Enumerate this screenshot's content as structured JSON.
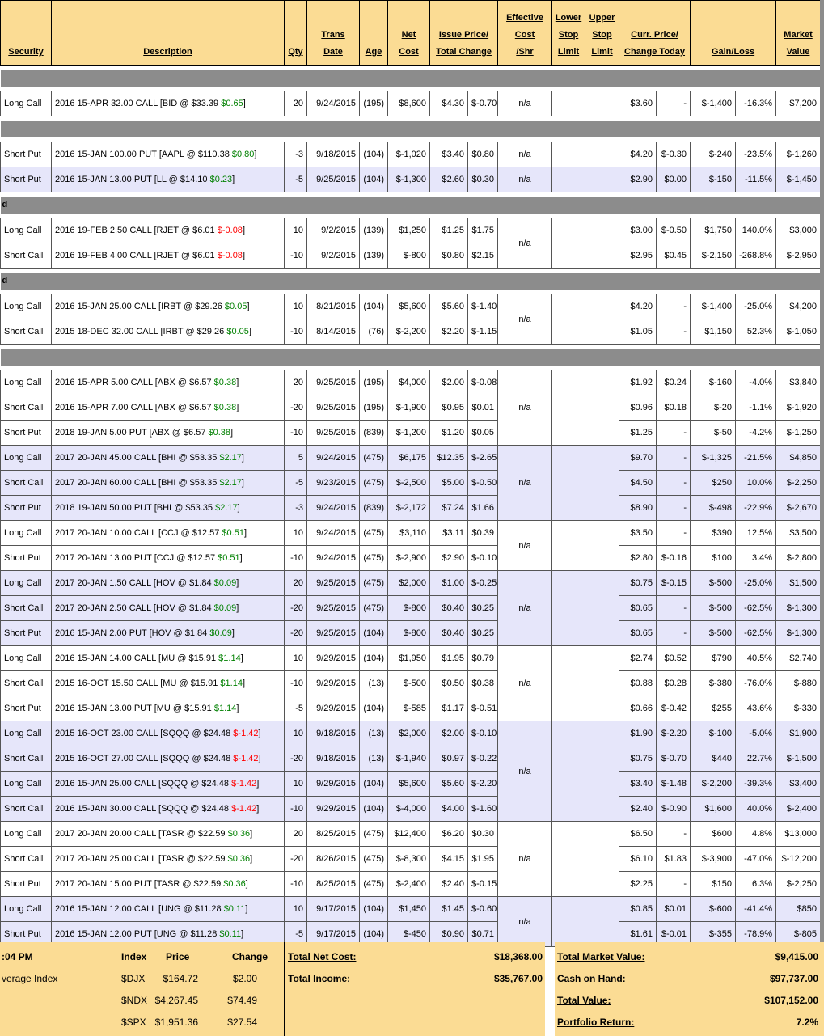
{
  "colors": {
    "positive_green": "#008000",
    "negative_red": "#FF0000",
    "header_tan": "#FBDC94",
    "separator_gray": "#8C8C8C",
    "alt_row_lavender": "#E6E6FA"
  },
  "header": {
    "security": "Security",
    "description": "Description",
    "qty": "Qty",
    "trans_date": "Trans\nDate",
    "age": "Age",
    "net_cost": "Net\nCost",
    "issue_total": "Issue Price/\nTotal Change",
    "effective": "Effective\nCost\n/Shr",
    "lower_stop": "Lower\nStop\nLimit",
    "upper_stop": "Upper\nStop\nLimit",
    "curr_change": "Curr. Price/\nChange Today",
    "gain_loss": "Gain/Loss",
    "market_value": "Market\nValue"
  },
  "sections": [
    {
      "type": "band",
      "label": ""
    },
    {
      "type": "group",
      "bg": "white",
      "eff": "n/a",
      "rows": [
        {
          "sec": "Long Call",
          "d": "2016 15-APR 32.00 CALL [BID @ $33.39",
          "c": "$0.65",
          "cc": "g",
          "qty": "20",
          "dt": "9/24/2015",
          "age": "(195)",
          "net": "$8,600",
          "ip": "$4.30",
          "tc": "$-0.70",
          "tcc": "r",
          "cp": "$3.60",
          "ct": "-",
          "ctc": "",
          "gl": "$-1,400",
          "glc": "r",
          "gp": "-16.3%",
          "mv": "$7,200"
        }
      ]
    },
    {
      "type": "band",
      "label": ""
    },
    {
      "type": "group",
      "bg": "white",
      "eff": "n/a",
      "rows": [
        {
          "sec": "Short Put",
          "d": "2016 15-JAN 100.00 PUT [AAPL @ $110.38",
          "c": "$0.80",
          "cc": "g",
          "qty": "-3",
          "dt": "9/18/2015",
          "age": "(104)",
          "net": "$-1,020",
          "ip": "$3.40",
          "tc": "$0.80",
          "tcc": "g",
          "cp": "$4.20",
          "ct": "$-0.30",
          "ctc": "r",
          "gl": "$-240",
          "glc": "r",
          "gp": "-23.5%",
          "mv": "$-1,260"
        }
      ]
    },
    {
      "type": "group",
      "bg": "blue",
      "eff": "n/a",
      "rows": [
        {
          "sec": "Short Put",
          "d": "2016 15-JAN 13.00 PUT [LL @ $14.10",
          "c": "$0.23",
          "cc": "g",
          "qty": "-5",
          "dt": "9/25/2015",
          "age": "(104)",
          "net": "$-1,300",
          "ip": "$2.60",
          "tc": "$0.30",
          "tcc": "g",
          "cp": "$2.90",
          "ct": "$0.00",
          "ctc": "g",
          "gl": "$-150",
          "glc": "r",
          "gp": "-11.5%",
          "mv": "$-1,450"
        }
      ]
    },
    {
      "type": "band",
      "label": "d"
    },
    {
      "type": "group",
      "bg": "white",
      "eff": "n/a",
      "rows": [
        {
          "sec": "Long Call",
          "d": "2016 19-FEB 2.50 CALL [RJET @ $6.01",
          "c": "$-0.08",
          "cc": "r",
          "qty": "10",
          "dt": "9/2/2015",
          "age": "(139)",
          "net": "$1,250",
          "ip": "$1.25",
          "tc": "$1.75",
          "tcc": "g",
          "cp": "$3.00",
          "ct": "$-0.50",
          "ctc": "r",
          "gl": "$1,750",
          "glc": "g",
          "gp": "140.0%",
          "mv": "$3,000"
        },
        {
          "sec": "Short Call",
          "d": "2016 19-FEB 4.00 CALL [RJET @ $6.01",
          "c": "$-0.08",
          "cc": "r",
          "qty": "-10",
          "dt": "9/2/2015",
          "age": "(139)",
          "net": "$-800",
          "ip": "$0.80",
          "tc": "$2.15",
          "tcc": "g",
          "cp": "$2.95",
          "ct": "$0.45",
          "ctc": "g",
          "gl": "$-2,150",
          "glc": "r",
          "gp": "-268.8%",
          "mv": "$-2,950"
        }
      ]
    },
    {
      "type": "band",
      "label": "d"
    },
    {
      "type": "group",
      "bg": "white",
      "eff": "n/a",
      "rows": [
        {
          "sec": "Long Call",
          "d": "2016 15-JAN 25.00 CALL [IRBT @ $29.26",
          "c": "$0.05",
          "cc": "g",
          "qty": "10",
          "dt": "8/21/2015",
          "age": "(104)",
          "net": "$5,600",
          "ip": "$5.60",
          "tc": "$-1.40",
          "tcc": "r",
          "cp": "$4.20",
          "ct": "-",
          "ctc": "",
          "gl": "$-1,400",
          "glc": "r",
          "gp": "-25.0%",
          "mv": "$4,200"
        },
        {
          "sec": "Short Call",
          "d": "2015 18-DEC 32.00 CALL [IRBT @ $29.26",
          "c": "$0.05",
          "cc": "g",
          "qty": "-10",
          "dt": "8/14/2015",
          "age": "(76)",
          "net": "$-2,200",
          "ip": "$2.20",
          "tc": "$-1.15",
          "tcc": "r",
          "cp": "$1.05",
          "ct": "-",
          "ctc": "",
          "gl": "$1,150",
          "glc": "g",
          "gp": "52.3%",
          "mv": "$-1,050"
        }
      ]
    },
    {
      "type": "band",
      "label": ""
    },
    {
      "type": "group",
      "bg": "white",
      "eff": "n/a",
      "rows": [
        {
          "sec": "Long Call",
          "d": "2016 15-APR 5.00 CALL [ABX @ $6.57",
          "c": "$0.38",
          "cc": "g",
          "qty": "20",
          "dt": "9/25/2015",
          "age": "(195)",
          "net": "$4,000",
          "ip": "$2.00",
          "tc": "$-0.08",
          "tcc": "r",
          "cp": "$1.92",
          "ct": "$0.24",
          "ctc": "g",
          "gl": "$-160",
          "glc": "r",
          "gp": "-4.0%",
          "mv": "$3,840"
        },
        {
          "sec": "Short Call",
          "d": "2016 15-APR 7.00 CALL [ABX @ $6.57",
          "c": "$0.38",
          "cc": "g",
          "qty": "-20",
          "dt": "9/25/2015",
          "age": "(195)",
          "net": "$-1,900",
          "ip": "$0.95",
          "tc": "$0.01",
          "tcc": "g",
          "cp": "$0.96",
          "ct": "$0.18",
          "ctc": "g",
          "gl": "$-20",
          "glc": "r",
          "gp": "-1.1%",
          "mv": "$-1,920"
        },
        {
          "sec": "Short Put",
          "d": "2018 19-JAN 5.00 PUT [ABX @ $6.57",
          "c": "$0.38",
          "cc": "g",
          "qty": "-10",
          "dt": "9/25/2015",
          "age": "(839)",
          "net": "$-1,200",
          "ip": "$1.20",
          "tc": "$0.05",
          "tcc": "g",
          "cp": "$1.25",
          "ct": "-",
          "ctc": "",
          "gl": "$-50",
          "glc": "r",
          "gp": "-4.2%",
          "mv": "$-1,250"
        }
      ]
    },
    {
      "type": "group",
      "bg": "blue",
      "eff": "n/a",
      "rows": [
        {
          "sec": "Long Call",
          "d": "2017 20-JAN 45.00 CALL [BHI @ $53.35",
          "c": "$2.17",
          "cc": "g",
          "qty": "5",
          "dt": "9/24/2015",
          "age": "(475)",
          "net": "$6,175",
          "ip": "$12.35",
          "tc": "$-2.65",
          "tcc": "r",
          "cp": "$9.70",
          "ct": "-",
          "ctc": "",
          "gl": "$-1,325",
          "glc": "r",
          "gp": "-21.5%",
          "mv": "$4,850"
        },
        {
          "sec": "Short Call",
          "d": "2017 20-JAN 60.00 CALL [BHI @ $53.35",
          "c": "$2.17",
          "cc": "g",
          "qty": "-5",
          "dt": "9/23/2015",
          "age": "(475)",
          "net": "$-2,500",
          "ip": "$5.00",
          "tc": "$-0.50",
          "tcc": "r",
          "cp": "$4.50",
          "ct": "-",
          "ctc": "",
          "gl": "$250",
          "glc": "g",
          "gp": "10.0%",
          "mv": "$-2,250"
        },
        {
          "sec": "Short Put",
          "d": "2018 19-JAN 50.00 PUT [BHI @ $53.35",
          "c": "$2.17",
          "cc": "g",
          "qty": "-3",
          "dt": "9/24/2015",
          "age": "(839)",
          "net": "$-2,172",
          "ip": "$7.24",
          "tc": "$1.66",
          "tcc": "g",
          "cp": "$8.90",
          "ct": "-",
          "ctc": "",
          "gl": "$-498",
          "glc": "r",
          "gp": "-22.9%",
          "mv": "$-2,670"
        }
      ]
    },
    {
      "type": "group",
      "bg": "white",
      "eff": "n/a",
      "rows": [
        {
          "sec": "Long Call",
          "d": "2017 20-JAN 10.00 CALL [CCJ @ $12.57",
          "c": "$0.51",
          "cc": "g",
          "qty": "10",
          "dt": "9/24/2015",
          "age": "(475)",
          "net": "$3,110",
          "ip": "$3.11",
          "tc": "$0.39",
          "tcc": "g",
          "cp": "$3.50",
          "ct": "-",
          "ctc": "",
          "gl": "$390",
          "glc": "g",
          "gp": "12.5%",
          "mv": "$3,500"
        },
        {
          "sec": "Short Put",
          "d": "2017 20-JAN 13.00 PUT [CCJ @ $12.57",
          "c": "$0.51",
          "cc": "g",
          "qty": "-10",
          "dt": "9/24/2015",
          "age": "(475)",
          "net": "$-2,900",
          "ip": "$2.90",
          "tc": "$-0.10",
          "tcc": "r",
          "cp": "$2.80",
          "ct": "$-0.16",
          "ctc": "r",
          "gl": "$100",
          "glc": "g",
          "gp": "3.4%",
          "mv": "$-2,800"
        }
      ]
    },
    {
      "type": "group",
      "bg": "blue",
      "eff": "n/a",
      "rows": [
        {
          "sec": "Long Call",
          "d": "2017 20-JAN 1.50 CALL [HOV @ $1.84",
          "c": "$0.09",
          "cc": "g",
          "qty": "20",
          "dt": "9/25/2015",
          "age": "(475)",
          "net": "$2,000",
          "ip": "$1.00",
          "tc": "$-0.25",
          "tcc": "r",
          "cp": "$0.75",
          "ct": "$-0.15",
          "ctc": "r",
          "gl": "$-500",
          "glc": "r",
          "gp": "-25.0%",
          "mv": "$1,500"
        },
        {
          "sec": "Short Call",
          "d": "2017 20-JAN 2.50 CALL [HOV @ $1.84",
          "c": "$0.09",
          "cc": "g",
          "qty": "-20",
          "dt": "9/25/2015",
          "age": "(475)",
          "net": "$-800",
          "ip": "$0.40",
          "tc": "$0.25",
          "tcc": "g",
          "cp": "$0.65",
          "ct": "-",
          "ctc": "",
          "gl": "$-500",
          "glc": "r",
          "gp": "-62.5%",
          "mv": "$-1,300"
        },
        {
          "sec": "Short Put",
          "d": "2016 15-JAN 2.00 PUT [HOV @ $1.84",
          "c": "$0.09",
          "cc": "g",
          "qty": "-20",
          "dt": "9/25/2015",
          "age": "(104)",
          "net": "$-800",
          "ip": "$0.40",
          "tc": "$0.25",
          "tcc": "g",
          "cp": "$0.65",
          "ct": "-",
          "ctc": "",
          "gl": "$-500",
          "glc": "r",
          "gp": "-62.5%",
          "mv": "$-1,300"
        }
      ]
    },
    {
      "type": "group",
      "bg": "white",
      "eff": "n/a",
      "rows": [
        {
          "sec": "Long Call",
          "d": "2016 15-JAN 14.00 CALL [MU @ $15.91",
          "c": "$1.14",
          "cc": "g",
          "qty": "10",
          "dt": "9/29/2015",
          "age": "(104)",
          "net": "$1,950",
          "ip": "$1.95",
          "tc": "$0.79",
          "tcc": "g",
          "cp": "$2.74",
          "ct": "$0.52",
          "ctc": "g",
          "gl": "$790",
          "glc": "g",
          "gp": "40.5%",
          "mv": "$2,740"
        },
        {
          "sec": "Short Call",
          "d": "2015 16-OCT 15.50 CALL [MU @ $15.91",
          "c": "$1.14",
          "cc": "g",
          "qty": "-10",
          "dt": "9/29/2015",
          "age": "(13)",
          "net": "$-500",
          "ip": "$0.50",
          "tc": "$0.38",
          "tcc": "g",
          "cp": "$0.88",
          "ct": "$0.28",
          "ctc": "g",
          "gl": "$-380",
          "glc": "r",
          "gp": "-76.0%",
          "mv": "$-880"
        },
        {
          "sec": "Short Put",
          "d": "2016 15-JAN 13.00 PUT [MU @ $15.91",
          "c": "$1.14",
          "cc": "g",
          "qty": "-5",
          "dt": "9/29/2015",
          "age": "(104)",
          "net": "$-585",
          "ip": "$1.17",
          "tc": "$-0.51",
          "tcc": "r",
          "cp": "$0.66",
          "ct": "$-0.42",
          "ctc": "r",
          "gl": "$255",
          "glc": "g",
          "gp": "43.6%",
          "mv": "$-330"
        }
      ]
    },
    {
      "type": "group",
      "bg": "blue",
      "eff": "n/a",
      "rows": [
        {
          "sec": "Long Call",
          "d": "2015 16-OCT 23.00 CALL [SQQQ @ $24.48",
          "c": "$-1.42",
          "cc": "r",
          "qty": "10",
          "dt": "9/18/2015",
          "age": "(13)",
          "net": "$2,000",
          "ip": "$2.00",
          "tc": "$-0.10",
          "tcc": "r",
          "cp": "$1.90",
          "ct": "$-2.20",
          "ctc": "r",
          "gl": "$-100",
          "glc": "r",
          "gp": "-5.0%",
          "mv": "$1,900"
        },
        {
          "sec": "Short Call",
          "d": "2015 16-OCT 27.00 CALL [SQQQ @ $24.48",
          "c": "$-1.42",
          "cc": "r",
          "qty": "-20",
          "dt": "9/18/2015",
          "age": "(13)",
          "net": "$-1,940",
          "ip": "$0.97",
          "tc": "$-0.22",
          "tcc": "r",
          "cp": "$0.75",
          "ct": "$-0.70",
          "ctc": "r",
          "gl": "$440",
          "glc": "g",
          "gp": "22.7%",
          "mv": "$-1,500"
        },
        {
          "sec": "Long Call",
          "d": "2016 15-JAN 25.00 CALL [SQQQ @ $24.48",
          "c": "$-1.42",
          "cc": "r",
          "qty": "10",
          "dt": "9/29/2015",
          "age": "(104)",
          "net": "$5,600",
          "ip": "$5.60",
          "tc": "$-2.20",
          "tcc": "r",
          "cp": "$3.40",
          "ct": "$-1.48",
          "ctc": "r",
          "gl": "$-2,200",
          "glc": "r",
          "gp": "-39.3%",
          "mv": "$3,400"
        },
        {
          "sec": "Short Call",
          "d": "2016 15-JAN 30.00 CALL [SQQQ @ $24.48",
          "c": "$-1.42",
          "cc": "r",
          "qty": "-10",
          "dt": "9/29/2015",
          "age": "(104)",
          "net": "$-4,000",
          "ip": "$4.00",
          "tc": "$-1.60",
          "tcc": "r",
          "cp": "$2.40",
          "ct": "$-0.90",
          "ctc": "r",
          "gl": "$1,600",
          "glc": "g",
          "gp": "40.0%",
          "mv": "$-2,400"
        }
      ]
    },
    {
      "type": "group",
      "bg": "white",
      "eff": "n/a",
      "rows": [
        {
          "sec": "Long Call",
          "d": "2017 20-JAN 20.00 CALL [TASR @ $22.59",
          "c": "$0.36",
          "cc": "g",
          "qty": "20",
          "dt": "8/25/2015",
          "age": "(475)",
          "net": "$12,400",
          "ip": "$6.20",
          "tc": "$0.30",
          "tcc": "g",
          "cp": "$6.50",
          "ct": "-",
          "ctc": "",
          "gl": "$600",
          "glc": "g",
          "gp": "4.8%",
          "mv": "$13,000"
        },
        {
          "sec": "Short Call",
          "d": "2017 20-JAN 25.00 CALL [TASR @ $22.59",
          "c": "$0.36",
          "cc": "g",
          "qty": "-20",
          "dt": "8/26/2015",
          "age": "(475)",
          "net": "$-8,300",
          "ip": "$4.15",
          "tc": "$1.95",
          "tcc": "g",
          "cp": "$6.10",
          "ct": "$1.83",
          "ctc": "g",
          "gl": "$-3,900",
          "glc": "r",
          "gp": "-47.0%",
          "mv": "$-12,200"
        },
        {
          "sec": "Short Put",
          "d": "2017 20-JAN 15.00 PUT [TASR @ $22.59",
          "c": "$0.36",
          "cc": "g",
          "qty": "-10",
          "dt": "8/25/2015",
          "age": "(475)",
          "net": "$-2,400",
          "ip": "$2.40",
          "tc": "$-0.15",
          "tcc": "r",
          "cp": "$2.25",
          "ct": "-",
          "ctc": "",
          "gl": "$150",
          "glc": "g",
          "gp": "6.3%",
          "mv": "$-2,250"
        }
      ]
    },
    {
      "type": "group",
      "bg": "blue",
      "eff": "n/a",
      "rows": [
        {
          "sec": "Long Call",
          "d": "2016 15-JAN 12.00 CALL [UNG @ $11.28",
          "c": "$0.11",
          "cc": "g",
          "qty": "10",
          "dt": "9/17/2015",
          "age": "(104)",
          "net": "$1,450",
          "ip": "$1.45",
          "tc": "$-0.60",
          "tcc": "r",
          "cp": "$0.85",
          "ct": "$0.01",
          "ctc": "g",
          "gl": "$-600",
          "glc": "r",
          "gp": "-41.4%",
          "mv": "$850"
        },
        {
          "sec": "Short Put",
          "d": "2016 15-JAN 12.00 PUT [UNG @ $11.28",
          "c": "$0.11",
          "cc": "g",
          "qty": "-5",
          "dt": "9/17/2015",
          "age": "(104)",
          "net": "$-450",
          "ip": "$0.90",
          "tc": "$0.71",
          "tcc": "g",
          "cp": "$1.61",
          "ct": "$-0.01",
          "ctc": "r",
          "gl": "$-355",
          "glc": "r",
          "gp": "-78.9%",
          "mv": "$-805"
        }
      ]
    }
  ],
  "summary": {
    "time": ":04 PM",
    "index_header": "Index",
    "price_header": "Price",
    "change_header": "Change",
    "average_label": "verage Index",
    "indices": [
      {
        "name": "$DJX",
        "price": "$164.72",
        "change": "$2.00"
      },
      {
        "name": "$NDX",
        "price": "$4,267.45",
        "change": "$74.49"
      },
      {
        "name": "$SPX",
        "price": "$1,951.36",
        "change": "$27.54"
      }
    ],
    "total_net_cost_label": "Total Net Cost:",
    "total_net_cost": "$18,368.00",
    "total_income_label": "Total Income:",
    "total_income": "$35,767.00",
    "total_market_value_label": "Total Market Value:",
    "total_market_value": "$9,415.00",
    "cash_on_hand_label": "Cash on Hand:",
    "cash_on_hand": "$97,737.00",
    "total_value_label": "Total Value:",
    "total_value": "$107,152.00",
    "portfolio_return_label": "Portfolio Return:",
    "portfolio_return": "7.2%"
  }
}
